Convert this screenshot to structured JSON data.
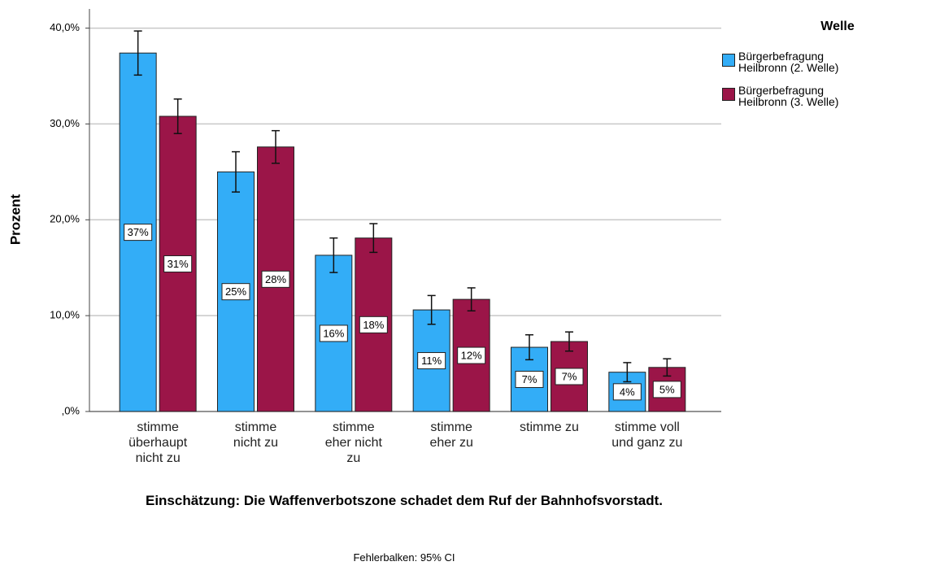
{
  "chart_data": {
    "type": "bar",
    "categories": [
      "stimme überhaupt nicht zu",
      "stimme nicht zu",
      "stimme eher nicht zu",
      "stimme eher zu",
      "stimme zu",
      "stimme voll und ganz zu"
    ],
    "series": [
      {
        "name": "Bürgerbefragung Heilbronn (2. Welle)",
        "color": "#33adf7",
        "values": [
          37.4,
          25.0,
          16.3,
          10.6,
          6.7,
          4.1
        ],
        "errors": [
          2.3,
          2.1,
          1.8,
          1.5,
          1.3,
          1.0
        ],
        "value_labels": [
          "37%",
          "25%",
          "16%",
          "11%",
          "7%",
          "4%"
        ]
      },
      {
        "name": "Bürgerbefragung Heilbronn (3. Welle)",
        "color": "#9b1548",
        "values": [
          30.8,
          27.6,
          18.1,
          11.7,
          7.3,
          4.6
        ],
        "errors": [
          1.8,
          1.7,
          1.5,
          1.2,
          1.0,
          0.9
        ],
        "value_labels": [
          "31%",
          "28%",
          "18%",
          "12%",
          "7%",
          "5%"
        ]
      }
    ],
    "ylabel": "Prozent",
    "xlabel": "Einschätzung: Die Waffenverbotszone schadet dem Ruf der Bahnhofsvorstadt.",
    "legend_title": "Welle",
    "footnote": "Fehlerbalken: 95% CI",
    "ylim": [
      0,
      42
    ],
    "yticks": [
      {
        "value": 0,
        "label": ",0%"
      },
      {
        "value": 10,
        "label": "10,0%"
      },
      {
        "value": 20,
        "label": "20,0%"
      },
      {
        "value": 30,
        "label": "30,0%"
      },
      {
        "value": 40,
        "label": "40,0%"
      }
    ],
    "grid": true
  }
}
